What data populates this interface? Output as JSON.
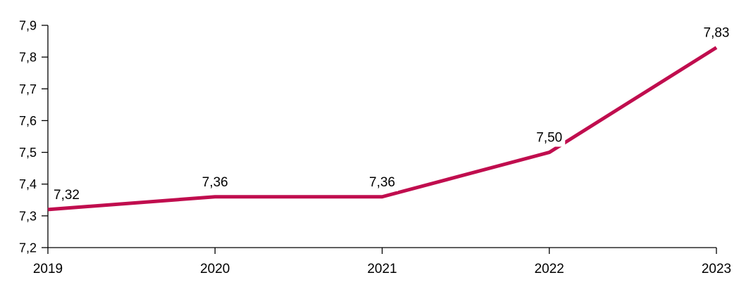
{
  "chart_data": {
    "type": "line",
    "categories": [
      "2019",
      "2020",
      "2021",
      "2022",
      "2023"
    ],
    "series": [
      {
        "name": "values",
        "values": [
          7.32,
          7.36,
          7.36,
          7.5,
          7.83
        ],
        "data_labels": [
          "7,32",
          "7,36",
          "7,36",
          "7,50",
          "7,83"
        ]
      }
    ],
    "y_axis": {
      "min": 7.2,
      "max": 7.9,
      "step": 0.1,
      "tick_values": [
        7.2,
        7.3,
        7.4,
        7.5,
        7.6,
        7.7,
        7.8,
        7.9
      ],
      "tick_labels": [
        "7,2",
        "7,3",
        "7,4",
        "7,5",
        "7,6",
        "7,7",
        "7,8",
        "7,9"
      ]
    },
    "x_axis": {
      "tick_labels": [
        "2019",
        "2020",
        "2021",
        "2022",
        "2023"
      ]
    },
    "grid": false,
    "legend": false,
    "decimal_separator": ",",
    "colors": {
      "line": "#C00D4E",
      "axis": "#000000",
      "text": "#000000",
      "label_background": "#FFFFFF"
    }
  }
}
